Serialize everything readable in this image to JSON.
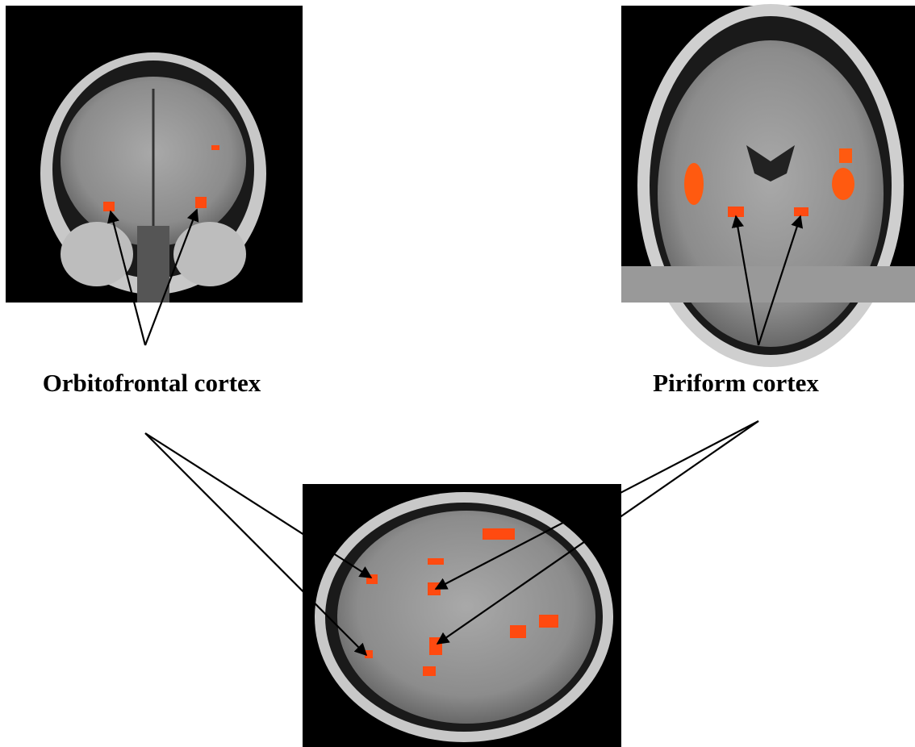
{
  "labels": [
    {
      "text": "Orbitofrontal cortex"
    },
    {
      "text": "Piriform cortex"
    }
  ]
}
